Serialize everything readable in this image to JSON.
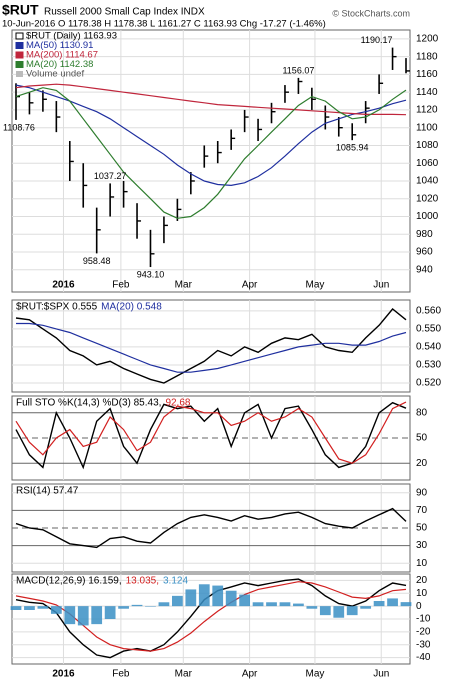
{
  "header": {
    "symbol": "$RUT",
    "name": "Russell 2000 Small Cap Index INDX",
    "quote": "10-Jun-2016  O 1178.38 H 1178.38 L 1161.27 C 1163.93 Chg -17.27 (-1.46%)",
    "credit": "© StockCharts.com"
  },
  "chart_data": [
    {
      "type": "ohlc",
      "xlim": [
        0,
        29
      ],
      "ylim": [
        915,
        1210
      ],
      "yticks": [
        940,
        960,
        980,
        1000,
        1020,
        1040,
        1060,
        1080,
        1100,
        1120,
        1140,
        1160,
        1180,
        1200
      ],
      "grid": true,
      "xticks": [
        {
          "value": 3.53,
          "label": "2016"
        },
        {
          "value": 7.8,
          "label": "Feb"
        },
        {
          "value": 12.44,
          "label": "Mar"
        },
        {
          "value": 17.37,
          "label": "Apr"
        },
        {
          "value": 22.23,
          "label": "May"
        },
        {
          "value": 27.16,
          "label": "Jun"
        }
      ],
      "series": [
        {
          "name": "$RUT (Daily) 1163.93",
          "color": "#000000",
          "high": [
            1150,
            1140,
            1142,
            1130,
            1085,
            1060,
            1010,
            1037.27,
            1040,
            1015,
            985,
            1000,
            1020,
            1050,
            1080,
            1085,
            1098,
            1120,
            1110,
            1128,
            1148,
            1156.07,
            1145,
            1125,
            1112,
            1105,
            1130,
            1160,
            1190.17,
            1178.38
          ],
          "low": [
            1108.76,
            1115,
            1118,
            1095,
            1040,
            1010,
            958.48,
            1000,
            1010,
            975,
            943.1,
            970,
            995,
            1025,
            1055,
            1060,
            1075,
            1095,
            1085,
            1105,
            1128,
            1138,
            1120,
            1098,
            1090,
            1085.94,
            1105,
            1138,
            1165,
            1161.27
          ],
          "close": [
            1135,
            1128,
            1132,
            1112,
            1062,
            1035,
            985,
            1022,
            1028,
            995,
            958,
            990,
            1008,
            1040,
            1068,
            1072,
            1088,
            1112,
            1098,
            1118,
            1140,
            1152,
            1132,
            1112,
            1100,
            1092,
            1122,
            1150,
            1180,
            1163.93
          ]
        },
        {
          "name": "MA(50) 1130.91",
          "color": "#1f2f9f",
          "values": [
            1148,
            1145,
            1140,
            1135,
            1130,
            1124,
            1118,
            1110,
            1100,
            1090,
            1080,
            1070,
            1058,
            1048,
            1040,
            1036,
            1035,
            1038,
            1045,
            1055,
            1068,
            1082,
            1095,
            1105,
            1110,
            1115,
            1118,
            1122,
            1127,
            1130.91
          ]
        },
        {
          "name": "MA(200) 1114.67",
          "color": "#c0263c",
          "values": [
            1145,
            1147,
            1148,
            1149,
            1148,
            1146,
            1144,
            1142,
            1140,
            1138,
            1136,
            1134,
            1132,
            1130,
            1128,
            1126,
            1125,
            1124,
            1123,
            1122,
            1121,
            1120,
            1119,
            1118,
            1117,
            1116,
            1115,
            1115,
            1115,
            1114.67
          ]
        },
        {
          "name": "MA(20) 1142.38",
          "color": "#2e7d2e",
          "values": [
            1135,
            1140,
            1145,
            1142,
            1130,
            1110,
            1090,
            1070,
            1050,
            1035,
            1020,
            1005,
            998,
            1000,
            1010,
            1025,
            1045,
            1065,
            1080,
            1095,
            1110,
            1125,
            1135,
            1130,
            1118,
            1110,
            1112,
            1120,
            1132,
            1142.38
          ]
        }
      ],
      "legend_extra": "Volume undef",
      "annotations": [
        1108.76,
        958.48,
        1037.27,
        {
          "value": 943.1,
          "label": "943.10"
        },
        1156.07,
        1085.94,
        1190.17
      ]
    },
    {
      "type": "line",
      "xlim": [
        0,
        29
      ],
      "ylim": [
        0.515,
        0.566
      ],
      "yticks": [
        {
          "value": 0.52,
          "label": "0.520"
        },
        {
          "value": 0.53,
          "label": "0.530"
        },
        {
          "value": 0.54,
          "label": "0.540"
        },
        {
          "value": 0.55,
          "label": "0.550"
        },
        {
          "value": 0.56,
          "label": "0.560"
        }
      ],
      "grid": true,
      "series": [
        {
          "name": "$RUT:$SPX 0.555",
          "color": "#000000",
          "values": [
            0.556,
            0.555,
            0.55,
            0.545,
            0.538,
            0.535,
            0.53,
            0.532,
            0.528,
            0.525,
            0.522,
            0.52,
            0.524,
            0.528,
            0.532,
            0.538,
            0.535,
            0.54,
            0.537,
            0.542,
            0.545,
            0.544,
            0.547,
            0.54,
            0.538,
            0.537,
            0.545,
            0.552,
            0.561,
            0.555
          ]
        },
        {
          "name": "MA(20) 0.548",
          "color": "#1f2f9f",
          "values": [
            0.553,
            0.553,
            0.552,
            0.55,
            0.548,
            0.545,
            0.542,
            0.539,
            0.536,
            0.533,
            0.53,
            0.528,
            0.526,
            0.526,
            0.527,
            0.528,
            0.53,
            0.532,
            0.534,
            0.536,
            0.538,
            0.54,
            0.541,
            0.542,
            0.542,
            0.541,
            0.541,
            0.543,
            0.546,
            0.548
          ]
        }
      ]
    },
    {
      "type": "line",
      "xlim": [
        0,
        29
      ],
      "ylim": [
        0,
        100
      ],
      "yticks": [
        20,
        50,
        80
      ],
      "grid": true,
      "ref_lines": [
        20,
        80
      ],
      "dashed_ref": 50,
      "series": [
        {
          "name": "Full STO %K(14,3) %D(3) 85.43,",
          "color": "#000000",
          "values": [
            60,
            30,
            15,
            80,
            50,
            15,
            70,
            85,
            40,
            20,
            60,
            90,
            85,
            88,
            70,
            85,
            40,
            80,
            90,
            50,
            85,
            88,
            60,
            30,
            15,
            20,
            40,
            80,
            92,
            85.43
          ]
        },
        {
          "name": "92.68",
          "color": "#d22020",
          "values": [
            70,
            45,
            30,
            50,
            60,
            40,
            45,
            75,
            60,
            35,
            45,
            75,
            88,
            85,
            80,
            80,
            65,
            70,
            80,
            70,
            75,
            85,
            75,
            50,
            25,
            20,
            30,
            55,
            85,
            92.68
          ]
        }
      ]
    },
    {
      "type": "line",
      "xlim": [
        0,
        29
      ],
      "ylim": [
        0,
        100
      ],
      "yticks": [
        10,
        30,
        50,
        70,
        90
      ],
      "grid": true,
      "ref_lines": [
        30,
        70
      ],
      "dashed_ref": 50,
      "series": [
        {
          "name": "RSI(14) 57.47",
          "color": "#000000",
          "values": [
            55,
            50,
            48,
            40,
            32,
            30,
            28,
            38,
            40,
            35,
            33,
            45,
            55,
            62,
            65,
            62,
            58,
            64,
            60,
            62,
            66,
            68,
            62,
            55,
            52,
            50,
            58,
            65,
            72,
            57.47
          ]
        }
      ]
    },
    {
      "type": "line",
      "xlim": [
        0,
        29
      ],
      "ylim": [
        -45,
        25
      ],
      "yticks": [
        -40,
        -30,
        -20,
        -10,
        0,
        10,
        20
      ],
      "grid": true,
      "xticks": [
        {
          "value": 3.53,
          "label": "2016"
        },
        {
          "value": 7.8,
          "label": "Feb"
        },
        {
          "value": 12.44,
          "label": "Mar"
        },
        {
          "value": 17.37,
          "label": "Apr"
        },
        {
          "value": 22.23,
          "label": "May"
        },
        {
          "value": 27.16,
          "label": "Jun"
        }
      ],
      "series": [
        {
          "name": "MACD(12,26,9) 16.159,",
          "color": "#000000",
          "values": [
            5,
            3,
            2,
            -5,
            -20,
            -30,
            -38,
            -40,
            -35,
            -33,
            -35,
            -30,
            -20,
            -8,
            5,
            12,
            15,
            18,
            16,
            18,
            20,
            21,
            16,
            8,
            2,
            0,
            4,
            12,
            18,
            16.159
          ]
        },
        {
          "name": "13.035,",
          "color": "#d22020",
          "values": [
            8,
            6,
            4,
            1,
            -6,
            -15,
            -24,
            -30,
            -33,
            -34,
            -35,
            -33,
            -28,
            -21,
            -12,
            -4,
            3,
            9,
            13,
            15,
            17,
            19,
            18,
            15,
            11,
            7,
            6,
            8,
            12,
            13.035
          ]
        },
        {
          "name": "3.124",
          "color": "#3a8fc4",
          "style": "bar",
          "values": [
            -3,
            -3,
            -2,
            -6,
            -14,
            -15,
            -14,
            -10,
            -2,
            1,
            0,
            3,
            8,
            13,
            17,
            16,
            12,
            9,
            3,
            3,
            3,
            2,
            -2,
            -7,
            -9,
            -7,
            -2,
            4,
            6,
            3.124
          ]
        }
      ]
    }
  ]
}
